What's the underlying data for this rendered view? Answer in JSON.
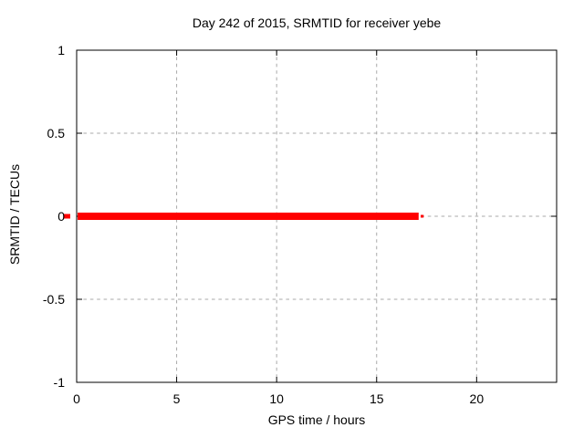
{
  "background_color": "#ffffff",
  "text_color": "#000000",
  "chart_data": {
    "type": "line",
    "title": "Day 242 of 2015, SRMTID for receiver yebe",
    "xlabel": "GPS time / hours",
    "ylabel": "SRMTID / TECUs",
    "xlim": [
      0,
      24
    ],
    "ylim": [
      -1,
      1
    ],
    "xticks": [
      0,
      5,
      10,
      15,
      20
    ],
    "xtick_labels": [
      "0",
      "5",
      "10",
      "15",
      "20"
    ],
    "yticks": [
      -1,
      -0.5,
      0,
      0.5,
      1
    ],
    "ytick_labels": [
      "-1",
      "-0.5",
      "0",
      "0.5",
      "1"
    ],
    "grid": true,
    "grid_color": "#a8a8a8",
    "axis_color": "#000000",
    "legend_position": "none",
    "series": [
      {
        "name": "SRMTID dense segment",
        "color": "#ff0000",
        "y_constant": 0.0,
        "x_start": 0.05,
        "x_end": 17.1,
        "stroke_px": 8
      },
      {
        "name": "SRMTID sparse tail",
        "color": "#ff0000",
        "y_constant": 0.0,
        "x_start": 17.2,
        "x_end": 17.35,
        "stroke_px": 3
      },
      {
        "name": "SRMTID left edge artifact",
        "color": "#ff0000",
        "y_constant": 0.0,
        "x_start": -0.64,
        "x_end": -0.32,
        "stroke_px": 5
      }
    ]
  }
}
